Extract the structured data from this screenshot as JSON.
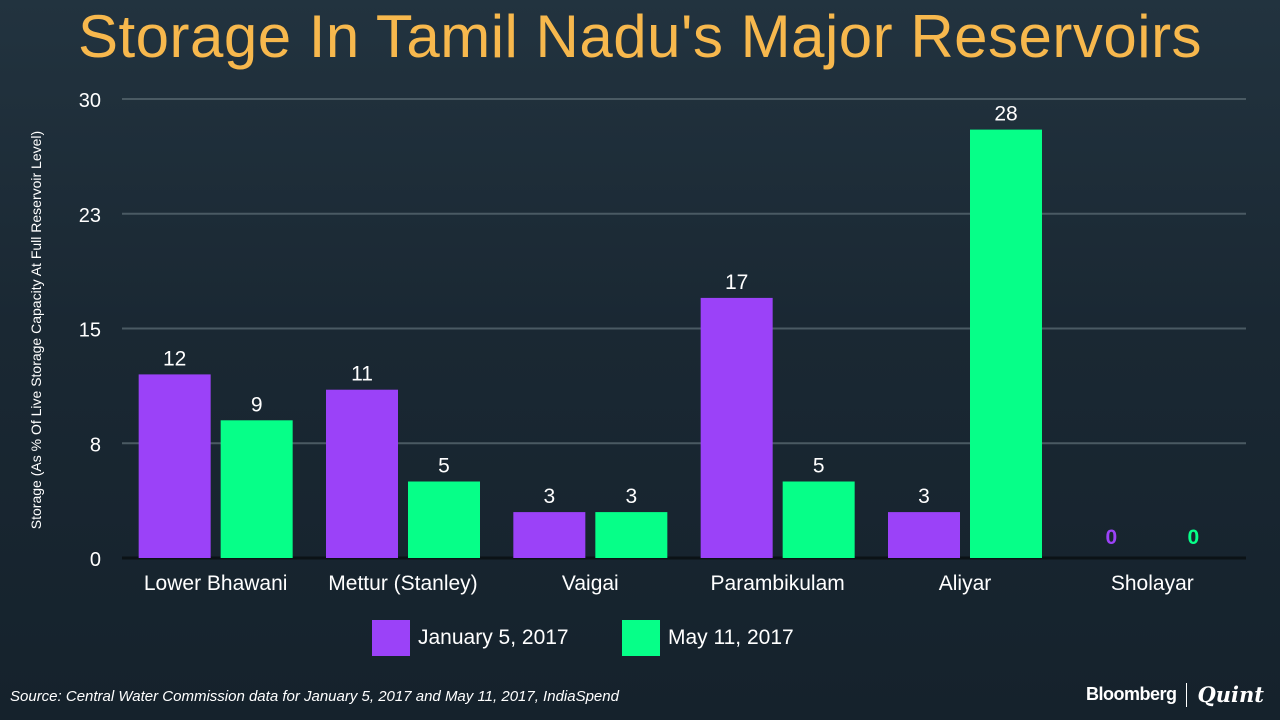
{
  "chart_data": {
    "type": "bar",
    "title": "Storage In Tamil Nadu's Major Reservoirs",
    "ylabel": "Storage (As % Of Live Storage Capacity At Full Reservoir Level)",
    "xlabel": "",
    "ylim": [
      0,
      30
    ],
    "yticks": [
      "30",
      "23",
      "15",
      "8",
      "0"
    ],
    "ytick_values": [
      30,
      22.5,
      15,
      7.5,
      0
    ],
    "categories": [
      "Lower Bhawani",
      "Mettur (Stanley)",
      "Vaigai",
      "Parambikulam",
      "Aliyar",
      "Sholayar"
    ],
    "series": [
      {
        "name": "January 5, 2017",
        "color": "#9b42f8",
        "values": [
          12,
          11,
          3,
          17,
          3,
          0
        ],
        "labels": [
          "12",
          "11",
          "3",
          "17",
          "3",
          "0"
        ]
      },
      {
        "name": "May 11, 2017",
        "color": "#06ff88",
        "values": [
          9,
          5,
          3,
          5,
          28,
          0
        ],
        "labels": [
          "9",
          "5",
          "3",
          "5",
          "28",
          "0"
        ]
      }
    ],
    "grid": true,
    "legend_position": "bottom"
  },
  "source": "Source: Central Water Commission data for January 5, 2017 and May 11, 2017, IndiaSpend",
  "brand": {
    "primary": "Bloomberg",
    "secondary": "Quint"
  },
  "colors": {
    "title": "#f7b84d",
    "grid": "#4a5a63",
    "background": "#1a2833"
  }
}
